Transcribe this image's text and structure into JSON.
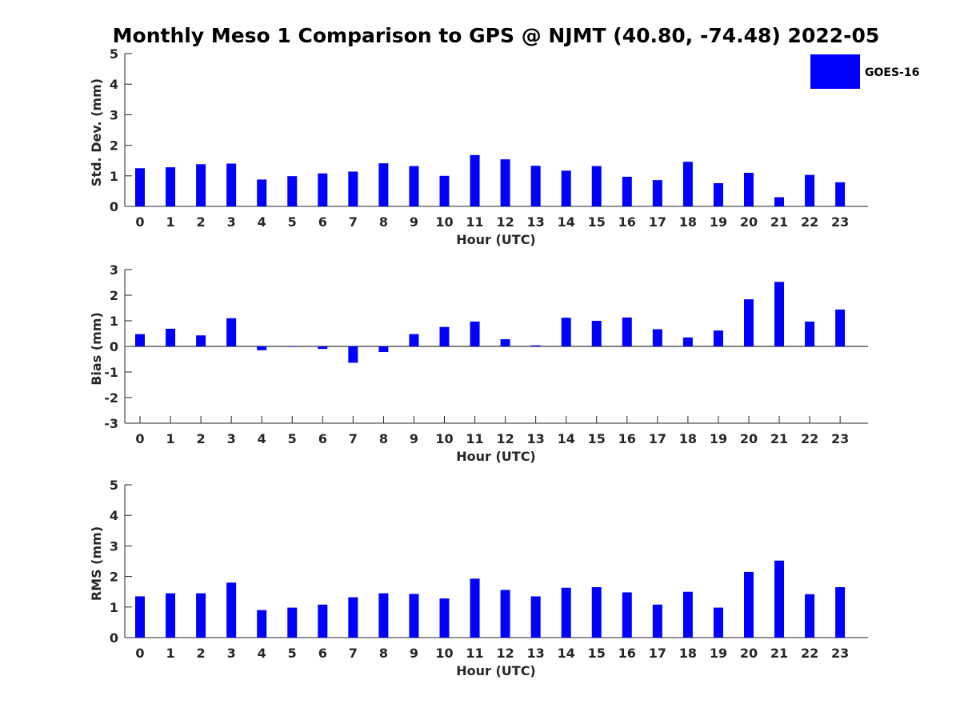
{
  "title": "Monthly Meso 1 Comparison to GPS @ NJMT (40.80, -74.48) 2022-05",
  "legend": {
    "label": "GOES-16",
    "color": "#0000ff"
  },
  "chart_data": [
    {
      "type": "bar",
      "categories": [
        "0",
        "1",
        "2",
        "3",
        "4",
        "5",
        "6",
        "7",
        "8",
        "9",
        "10",
        "11",
        "12",
        "13",
        "14",
        "15",
        "16",
        "17",
        "18",
        "19",
        "20",
        "21",
        "22",
        "23"
      ],
      "series": [
        {
          "name": "GOES-16",
          "values": [
            1.25,
            1.28,
            1.38,
            1.4,
            0.88,
            0.99,
            1.08,
            1.14,
            1.41,
            1.32,
            1.0,
            1.68,
            1.54,
            1.33,
            1.17,
            1.32,
            0.97,
            0.86,
            1.46,
            0.76,
            1.1,
            0.3,
            1.03,
            0.79
          ]
        }
      ],
      "xlabel": "Hour (UTC)",
      "ylabel": "Std. Dev. (mm)",
      "ylim": [
        0,
        5
      ],
      "yticks": [
        "0",
        "1",
        "2",
        "3",
        "4",
        "5"
      ],
      "grid": false,
      "legend_position": "top-right"
    },
    {
      "type": "bar",
      "categories": [
        "0",
        "1",
        "2",
        "3",
        "4",
        "5",
        "6",
        "7",
        "8",
        "9",
        "10",
        "11",
        "12",
        "13",
        "14",
        "15",
        "16",
        "17",
        "18",
        "19",
        "20",
        "21",
        "22",
        "23"
      ],
      "series": [
        {
          "name": "GOES-16",
          "values": [
            0.48,
            0.69,
            0.43,
            1.1,
            -0.15,
            -0.02,
            -0.1,
            -0.64,
            -0.22,
            0.48,
            0.76,
            0.97,
            0.28,
            0.04,
            1.12,
            1.0,
            1.13,
            0.67,
            0.35,
            0.62,
            1.84,
            2.52,
            0.97,
            1.44
          ]
        }
      ],
      "xlabel": "Hour (UTC)",
      "ylabel": "Bias (mm)",
      "ylim": [
        -3,
        3
      ],
      "yticks": [
        "-3",
        "-2",
        "-1",
        "0",
        "1",
        "2",
        "3"
      ],
      "grid": false,
      "zero_line": true
    },
    {
      "type": "bar",
      "categories": [
        "0",
        "1",
        "2",
        "3",
        "4",
        "5",
        "6",
        "7",
        "8",
        "9",
        "10",
        "11",
        "12",
        "13",
        "14",
        "15",
        "16",
        "17",
        "18",
        "19",
        "20",
        "21",
        "22",
        "23"
      ],
      "series": [
        {
          "name": "GOES-16",
          "values": [
            1.35,
            1.45,
            1.45,
            1.8,
            0.9,
            0.98,
            1.08,
            1.32,
            1.45,
            1.43,
            1.28,
            1.93,
            1.56,
            1.35,
            1.63,
            1.65,
            1.48,
            1.08,
            1.5,
            0.98,
            2.15,
            2.52,
            1.42,
            1.65
          ]
        }
      ],
      "xlabel": "Hour (UTC)",
      "ylabel": "RMS (mm)",
      "ylim": [
        0,
        5
      ],
      "yticks": [
        "0",
        "1",
        "2",
        "3",
        "4",
        "5"
      ],
      "grid": false
    }
  ]
}
